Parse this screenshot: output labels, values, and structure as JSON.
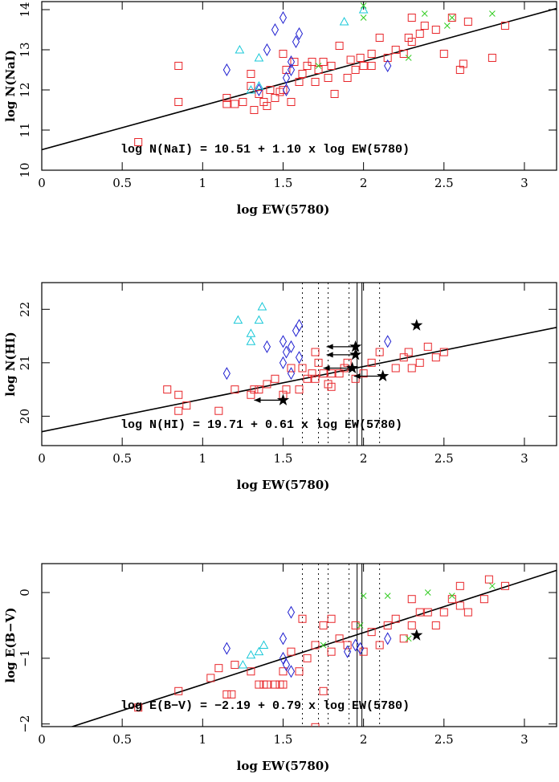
{
  "chart_data": [
    {
      "type": "scatter",
      "xlabel": "log EW(5780)",
      "ylabel": "log N(NaI)",
      "annotation": "log N(NaI) = 10.51 +  1.10 x log EW(5780)",
      "xlim": [
        0,
        3.2
      ],
      "ylim": [
        10,
        14.2
      ],
      "xticks": [
        0,
        0.5,
        1,
        1.5,
        2,
        2.5,
        3
      ],
      "yticks": [
        10,
        11,
        12,
        13,
        14
      ],
      "fit": {
        "intercept": 10.51,
        "slope": 1.1
      },
      "ref_lines": [],
      "series": [
        {
          "marker": "square",
          "color": "#e8262a",
          "x": [
            0.6,
            0.85,
            0.85,
            1.15,
            1.15,
            1.2,
            1.25,
            1.3,
            1.3,
            1.32,
            1.35,
            1.38,
            1.4,
            1.42,
            1.45,
            1.5,
            1.5,
            1.52,
            1.55,
            1.57,
            1.6,
            1.62,
            1.65,
            1.68,
            1.7,
            1.72,
            1.75,
            1.78,
            1.8,
            1.82,
            1.85,
            1.9,
            1.92,
            1.95,
            1.98,
            2.0,
            2.05,
            2.1,
            2.15,
            2.2,
            2.25,
            2.28,
            2.3,
            2.35,
            2.38,
            2.45,
            2.5,
            2.55,
            2.6,
            2.65,
            2.8,
            2.88,
            2.62,
            2.3,
            2.05,
            1.48
          ],
          "values": [
            10.7,
            12.6,
            11.7,
            11.8,
            11.65,
            11.65,
            11.7,
            12.4,
            12.1,
            11.5,
            11.9,
            11.7,
            11.6,
            12.0,
            11.8,
            12.0,
            12.9,
            12.5,
            11.7,
            12.7,
            12.2,
            12.4,
            12.6,
            12.7,
            12.2,
            12.5,
            12.7,
            12.3,
            12.6,
            11.9,
            13.1,
            12.3,
            12.75,
            12.5,
            12.8,
            12.6,
            12.6,
            13.3,
            12.8,
            13.0,
            12.9,
            13.3,
            13.2,
            13.4,
            13.6,
            13.5,
            12.9,
            13.8,
            12.5,
            13.7,
            12.8,
            13.6,
            12.65,
            13.8,
            12.9,
            11.95
          ]
        },
        {
          "marker": "diamond",
          "color": "#2020d0",
          "x": [
            1.15,
            1.35,
            1.4,
            1.45,
            1.5,
            1.52,
            1.52,
            1.55,
            1.6,
            1.58,
            1.55,
            2.15
          ],
          "values": [
            12.5,
            12.0,
            13.0,
            13.5,
            13.8,
            12.3,
            12.0,
            12.7,
            13.4,
            13.2,
            12.5,
            12.6
          ]
        },
        {
          "marker": "triangle",
          "color": "#19c8d8",
          "x": [
            1.23,
            1.3,
            1.35,
            1.35,
            1.88,
            2.0
          ],
          "values": [
            13.0,
            12.0,
            12.8,
            12.1,
            13.7,
            14.0
          ]
        },
        {
          "marker": "cross",
          "color": "#33cc22",
          "x": [
            1.72,
            2.0,
            2.0,
            2.28,
            2.38,
            2.52,
            2.55,
            2.8
          ],
          "values": [
            12.6,
            13.8,
            14.1,
            12.8,
            13.9,
            13.6,
            13.8,
            13.9
          ]
        }
      ]
    },
    {
      "type": "scatter",
      "xlabel": "log EW(5780)",
      "ylabel": "log N(HI)",
      "annotation": "log N(HI) = 19.71 +  0.61 x log EW(5780)",
      "xlim": [
        0,
        3.2
      ],
      "ylim": [
        19.45,
        22.5
      ],
      "xticks": [
        0,
        0.5,
        1,
        1.5,
        2,
        2.5,
        3
      ],
      "yticks": [
        20,
        21,
        22
      ],
      "fit": {
        "intercept": 19.71,
        "slope": 0.61
      },
      "ref_lines": [
        {
          "x": 1.62,
          "style": "dotted"
        },
        {
          "x": 1.72,
          "style": "dotted"
        },
        {
          "x": 1.78,
          "style": "dotted"
        },
        {
          "x": 1.91,
          "style": "dotted"
        },
        {
          "x": 1.96,
          "style": "solid"
        },
        {
          "x": 1.99,
          "style": "solid"
        },
        {
          "x": 2.1,
          "style": "dotted"
        }
      ],
      "series": [
        {
          "marker": "square",
          "color": "#e8262a",
          "x": [
            0.78,
            0.85,
            0.85,
            0.9,
            1.1,
            1.2,
            1.3,
            1.32,
            1.35,
            1.4,
            1.45,
            1.5,
            1.52,
            1.55,
            1.6,
            1.62,
            1.65,
            1.68,
            1.7,
            1.72,
            1.75,
            1.78,
            1.8,
            1.85,
            1.9,
            1.95,
            2.0,
            2.05,
            2.1,
            2.2,
            2.25,
            2.28,
            2.3,
            2.35,
            2.4,
            2.45,
            2.5,
            1.7,
            1.8,
            1.88
          ],
          "values": [
            20.5,
            20.1,
            20.4,
            20.2,
            20.1,
            20.5,
            20.4,
            20.5,
            20.5,
            20.6,
            20.7,
            20.4,
            20.5,
            20.9,
            20.5,
            20.9,
            20.7,
            20.8,
            20.7,
            21.0,
            20.8,
            20.6,
            20.8,
            20.8,
            21.0,
            20.7,
            20.8,
            21.0,
            21.2,
            20.9,
            21.1,
            21.2,
            20.9,
            21.0,
            21.3,
            21.1,
            21.2,
            21.2,
            20.55,
            20.9
          ]
        },
        {
          "marker": "diamond",
          "color": "#2020d0",
          "x": [
            1.15,
            1.4,
            1.5,
            1.5,
            1.52,
            1.55,
            1.58,
            1.6,
            1.55,
            2.15,
            1.6
          ],
          "values": [
            20.8,
            21.3,
            21.0,
            21.4,
            21.2,
            21.3,
            21.6,
            21.7,
            20.8,
            21.4,
            21.1
          ]
        },
        {
          "marker": "triangle",
          "color": "#19c8d8",
          "x": [
            1.22,
            1.3,
            1.3,
            1.35,
            1.37
          ],
          "values": [
            21.8,
            21.4,
            21.55,
            21.8,
            22.05
          ]
        },
        {
          "marker": "star",
          "color": "#000000",
          "arrows": true,
          "x": [
            1.5,
            1.93,
            1.95,
            1.95,
            2.12
          ],
          "values": [
            20.3,
            20.9,
            21.15,
            21.3,
            20.75
          ]
        },
        {
          "marker": "star",
          "color": "#000000",
          "x": [
            2.33
          ],
          "values": [
            21.7
          ]
        }
      ]
    },
    {
      "type": "scatter",
      "xlabel": "log EW(5780)",
      "ylabel": "log E(B−V)",
      "annotation": "log E(B−V) = −2.19 +  0.79 x log EW(5780)",
      "xlim": [
        0,
        3.2
      ],
      "ylim": [
        -2.04,
        0.44
      ],
      "xticks": [
        0,
        0.5,
        1,
        1.5,
        2,
        2.5,
        3
      ],
      "yticks": [
        {
          "value": -2,
          "label": "−2"
        },
        {
          "value": -1,
          "label": "−1"
        },
        0
      ],
      "fit": {
        "intercept": -2.19,
        "slope": 0.79
      },
      "ref_lines": [
        {
          "x": 1.62,
          "style": "dotted"
        },
        {
          "x": 1.72,
          "style": "dotted"
        },
        {
          "x": 1.78,
          "style": "dotted"
        },
        {
          "x": 1.91,
          "style": "dotted"
        },
        {
          "x": 1.96,
          "style": "solid"
        },
        {
          "x": 1.99,
          "style": "solid"
        },
        {
          "x": 2.1,
          "style": "dotted"
        }
      ],
      "series": [
        {
          "marker": "square",
          "color": "#e8262a",
          "x": [
            0.6,
            0.85,
            1.05,
            1.1,
            1.15,
            1.18,
            1.2,
            1.3,
            1.35,
            1.38,
            1.4,
            1.45,
            1.48,
            1.5,
            1.5,
            1.55,
            1.6,
            1.62,
            1.65,
            1.7,
            1.75,
            1.75,
            1.8,
            1.8,
            1.85,
            1.9,
            1.95,
            2.0,
            2.05,
            2.1,
            2.15,
            2.2,
            2.25,
            2.3,
            2.35,
            2.4,
            2.45,
            2.5,
            2.55,
            2.6,
            2.65,
            2.75,
            2.78,
            2.88,
            1.7,
            2.3,
            2.6
          ],
          "values": [
            -1.75,
            -1.5,
            -1.3,
            -1.15,
            -1.55,
            -1.55,
            -1.1,
            -1.2,
            -1.4,
            -1.4,
            -1.4,
            -1.4,
            -1.4,
            -1.2,
            -1.4,
            -0.9,
            -1.2,
            -0.4,
            -1.0,
            -0.8,
            -1.5,
            -0.5,
            -0.9,
            -0.4,
            -0.7,
            -0.8,
            -0.5,
            -0.9,
            -0.6,
            -0.8,
            -0.5,
            -0.4,
            -0.7,
            -0.5,
            -0.3,
            -0.3,
            -0.5,
            -0.3,
            -0.1,
            0.1,
            -0.3,
            -0.1,
            0.2,
            0.1,
            -2.05,
            -0.1,
            -0.2
          ]
        },
        {
          "marker": "diamond",
          "color": "#2020d0",
          "x": [
            1.15,
            1.5,
            1.55,
            1.5,
            1.52,
            1.55,
            1.9,
            1.95,
            2.15,
            1.98
          ],
          "values": [
            -0.85,
            -0.7,
            -0.3,
            -1.0,
            -1.1,
            -1.2,
            -0.9,
            -0.8,
            -0.7,
            -0.85
          ]
        },
        {
          "marker": "triangle",
          "color": "#19c8d8",
          "x": [
            1.25,
            1.3,
            1.35,
            1.38
          ],
          "values": [
            -1.1,
            -0.95,
            -0.9,
            -0.8
          ]
        },
        {
          "marker": "cross",
          "color": "#33cc22",
          "x": [
            1.75,
            1.98,
            2.0,
            2.15,
            2.28,
            2.4,
            2.55,
            2.8
          ],
          "values": [
            -0.8,
            -0.5,
            -0.05,
            -0.05,
            -0.7,
            0.0,
            -0.05,
            0.1
          ]
        },
        {
          "marker": "star",
          "color": "#000000",
          "x": [
            2.33
          ],
          "values": [
            -0.65
          ]
        }
      ]
    }
  ]
}
